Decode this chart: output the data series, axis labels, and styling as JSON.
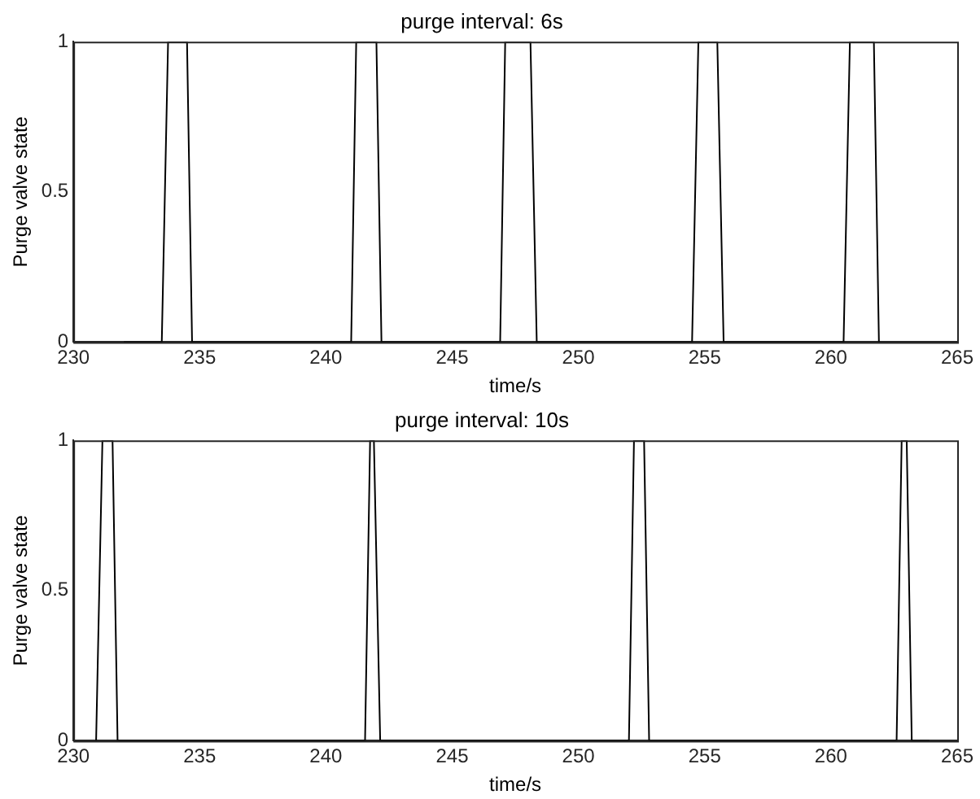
{
  "chart_data": [
    {
      "type": "line",
      "title": "purge interval: 6s",
      "xlabel": "time/s",
      "ylabel": "Purge valve state",
      "color": "#000000",
      "marker": "none",
      "x": [
        232,
        233.5,
        233.75,
        234.5,
        234.7,
        241,
        241.2,
        242,
        242.2,
        246.9,
        247.1,
        248.1,
        248.35,
        254.5,
        254.75,
        255.5,
        255.75,
        260.5,
        260.75,
        261.7,
        261.9
      ],
      "values": [
        0,
        0,
        1,
        1,
        0,
        0,
        1,
        1,
        0,
        0,
        1,
        1,
        0,
        0,
        1,
        1,
        0,
        0,
        1,
        1,
        0
      ],
      "xlim": [
        230,
        265
      ],
      "xticks": [
        230,
        235,
        240,
        245,
        250,
        255,
        260,
        265
      ],
      "ylim": [
        0,
        1
      ],
      "yticks": [
        0,
        0.5,
        1
      ]
    },
    {
      "type": "line",
      "title": "purge interval: 10s",
      "xlabel": "time/s",
      "ylabel": "Purge valve state",
      "color": "#000000",
      "marker": "none",
      "x": [
        230.9,
        231.15,
        231.55,
        231.75,
        241.55,
        241.75,
        241.9,
        242.15,
        252,
        252.2,
        252.6,
        252.8,
        262.6,
        262.8,
        263,
        263.2,
        263.9
      ],
      "values": [
        0,
        1,
        1,
        0,
        0,
        1,
        1,
        0,
        0,
        1,
        1,
        0,
        0,
        1,
        1,
        0,
        0
      ],
      "xlim": [
        230,
        265
      ],
      "xticks": [
        230,
        235,
        240,
        245,
        250,
        255,
        260,
        265
      ],
      "ylim": [
        0,
        1
      ],
      "yticks": [
        0,
        0.5,
        1
      ]
    }
  ]
}
